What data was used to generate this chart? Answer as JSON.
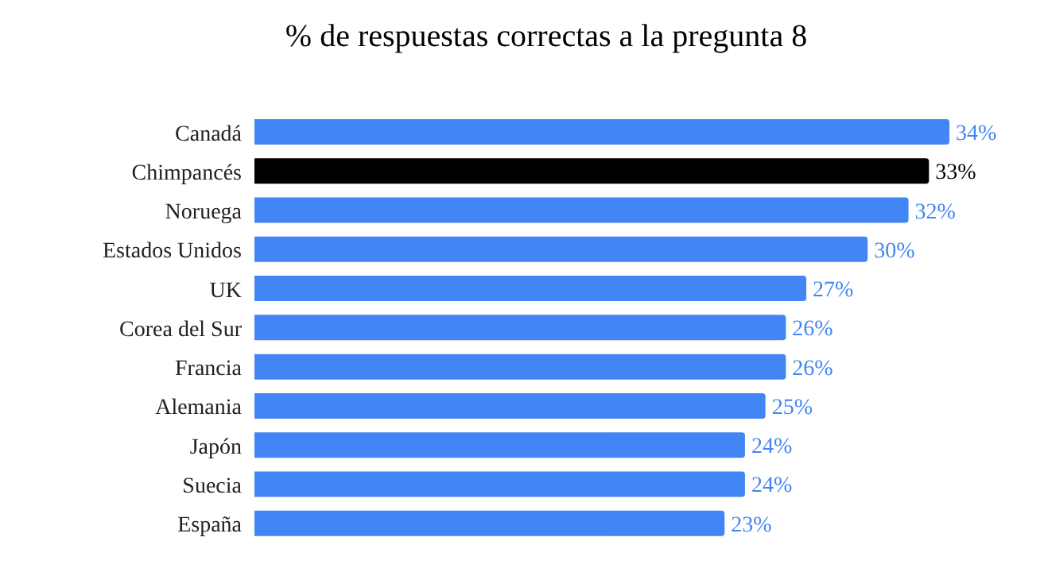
{
  "chart_data": {
    "type": "bar",
    "orientation": "horizontal",
    "title": "% de respuestas correctas a la pregunta 8",
    "categories": [
      "Canadá",
      "Chimpancés",
      "Noruega",
      "Estados Unidos",
      "UK",
      "Corea del Sur",
      "Francia",
      "Alemania",
      "Japón",
      "Suecia",
      "España"
    ],
    "values": [
      34,
      33,
      32,
      30,
      27,
      26,
      26,
      25,
      24,
      24,
      23
    ],
    "colors": [
      "#4285f4",
      "#000000",
      "#4285f4",
      "#4285f4",
      "#4285f4",
      "#4285f4",
      "#4285f4",
      "#4285f4",
      "#4285f4",
      "#4285f4",
      "#4285f4"
    ],
    "value_labels": [
      "34%",
      "33%",
      "32%",
      "30%",
      "27%",
      "26%",
      "26%",
      "25%",
      "24%",
      "24%",
      "23%"
    ],
    "grid": false,
    "legend": false
  }
}
